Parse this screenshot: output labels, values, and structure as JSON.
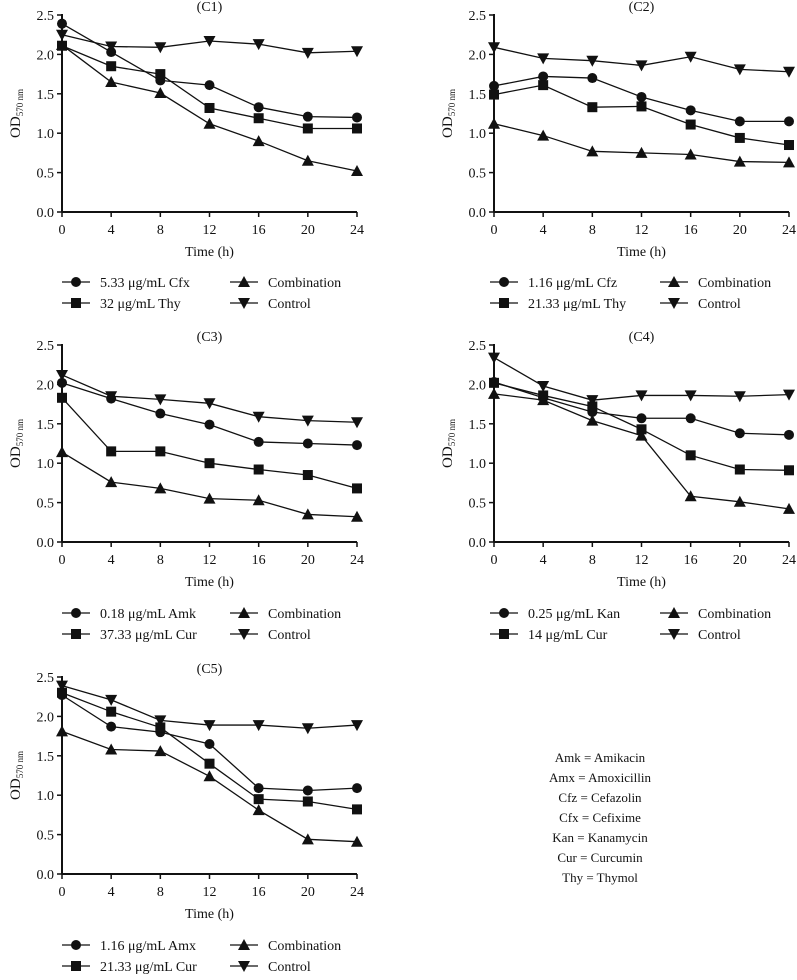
{
  "chart_data": [
    {
      "type": "line",
      "title": "(C1)",
      "xlabel": "Time (h)",
      "ylabel": "OD",
      "ylabel_sub": "570 nm",
      "x": [
        0,
        4,
        8,
        12,
        16,
        20,
        24
      ],
      "xticks": [
        "0",
        "4",
        "8",
        "12",
        "16",
        "20",
        "24"
      ],
      "yticks": [
        "0.0",
        "0.5",
        "1.0",
        "1.5",
        "2.0",
        "2.5"
      ],
      "ylim": [
        0,
        2.5
      ],
      "series": [
        {
          "name": "5.33 μg/mL Cfx",
          "marker": "circle",
          "values": [
            2.39,
            2.03,
            1.67,
            1.61,
            1.33,
            1.21,
            1.2
          ]
        },
        {
          "name": "32 μg/mL Thy",
          "marker": "square",
          "values": [
            2.11,
            1.85,
            1.75,
            1.32,
            1.19,
            1.06,
            1.06
          ]
        },
        {
          "name": "Combination",
          "marker": "triangle-up",
          "values": [
            2.12,
            1.65,
            1.51,
            1.12,
            0.9,
            0.65,
            0.52
          ]
        },
        {
          "name": "Control",
          "marker": "triangle-down",
          "values": [
            2.25,
            2.1,
            2.09,
            2.17,
            2.13,
            2.02,
            2.04
          ]
        }
      ]
    },
    {
      "type": "line",
      "title": "(C2)",
      "xlabel": "Time (h)",
      "ylabel": "OD",
      "ylabel_sub": "570 nm",
      "x": [
        0,
        4,
        8,
        12,
        16,
        20,
        24
      ],
      "xticks": [
        "0",
        "4",
        "8",
        "12",
        "16",
        "20",
        "24"
      ],
      "yticks": [
        "0.0",
        "0.5",
        "1.0",
        "1.5",
        "2.0",
        "2.5"
      ],
      "ylim": [
        0,
        2.5
      ],
      "series": [
        {
          "name": "1.16 μg/mL Cfz",
          "marker": "circle",
          "values": [
            1.6,
            1.72,
            1.7,
            1.46,
            1.29,
            1.15,
            1.15
          ]
        },
        {
          "name": "21.33 μg/mL Thy",
          "marker": "square",
          "values": [
            1.49,
            1.61,
            1.33,
            1.34,
            1.11,
            0.94,
            0.85
          ]
        },
        {
          "name": "Combination",
          "marker": "triangle-up",
          "values": [
            1.12,
            0.97,
            0.77,
            0.75,
            0.73,
            0.64,
            0.63
          ]
        },
        {
          "name": "Control",
          "marker": "triangle-down",
          "values": [
            2.09,
            1.95,
            1.92,
            1.86,
            1.97,
            1.81,
            1.78
          ]
        }
      ]
    },
    {
      "type": "line",
      "title": "(C3)",
      "xlabel": "Time (h)",
      "ylabel": "OD",
      "ylabel_sub": "570 nm",
      "x": [
        0,
        4,
        8,
        12,
        16,
        20,
        24
      ],
      "xticks": [
        "0",
        "4",
        "8",
        "12",
        "16",
        "20",
        "24"
      ],
      "yticks": [
        "0.0",
        "0.5",
        "1.0",
        "1.5",
        "2.0",
        "2.5"
      ],
      "ylim": [
        0,
        2.5
      ],
      "series": [
        {
          "name": "0.18 μg/mL Amk",
          "marker": "circle",
          "values": [
            2.02,
            1.82,
            1.63,
            1.49,
            1.27,
            1.25,
            1.23
          ]
        },
        {
          "name": "37.33 μg/mL Cur",
          "marker": "square",
          "values": [
            1.83,
            1.15,
            1.15,
            1.0,
            0.92,
            0.85,
            0.68
          ]
        },
        {
          "name": "Combination",
          "marker": "triangle-up",
          "values": [
            1.14,
            0.76,
            0.68,
            0.55,
            0.53,
            0.35,
            0.32
          ]
        },
        {
          "name": "Control",
          "marker": "triangle-down",
          "values": [
            2.12,
            1.85,
            1.81,
            1.76,
            1.59,
            1.54,
            1.52
          ]
        }
      ]
    },
    {
      "type": "line",
      "title": "(C4)",
      "xlabel": "Time (h)",
      "ylabel": "OD",
      "ylabel_sub": "570 nm",
      "x": [
        0,
        4,
        8,
        12,
        16,
        20,
        24
      ],
      "xticks": [
        "0",
        "4",
        "8",
        "12",
        "16",
        "20",
        "24"
      ],
      "yticks": [
        "0.0",
        "0.5",
        "1.0",
        "1.5",
        "2.0",
        "2.5"
      ],
      "ylim": [
        0,
        2.5
      ],
      "series": [
        {
          "name": "0.25 μg/mL Kan",
          "marker": "circle",
          "values": [
            2.03,
            1.83,
            1.65,
            1.57,
            1.57,
            1.38,
            1.36
          ]
        },
        {
          "name": "14 μg/mL Cur",
          "marker": "square",
          "values": [
            2.02,
            1.86,
            1.72,
            1.43,
            1.1,
            0.92,
            0.91
          ]
        },
        {
          "name": "Combination",
          "marker": "triangle-up",
          "values": [
            1.88,
            1.8,
            1.54,
            1.35,
            0.58,
            0.51,
            0.42
          ]
        },
        {
          "name": "Control",
          "marker": "triangle-down",
          "values": [
            2.34,
            1.98,
            1.8,
            1.86,
            1.86,
            1.85,
            1.87
          ]
        }
      ]
    },
    {
      "type": "line",
      "title": "(C5)",
      "xlabel": "Time (h)",
      "ylabel": "OD",
      "ylabel_sub": "570 nm",
      "x": [
        0,
        4,
        8,
        12,
        16,
        20,
        24
      ],
      "xticks": [
        "0",
        "4",
        "8",
        "12",
        "16",
        "20",
        "24"
      ],
      "yticks": [
        "0.0",
        "0.5",
        "1.0",
        "1.5",
        "2.0",
        "2.5"
      ],
      "ylim": [
        0,
        2.5
      ],
      "series": [
        {
          "name": "1.16 μg/mL Amx",
          "marker": "circle",
          "values": [
            2.27,
            1.87,
            1.8,
            1.65,
            1.09,
            1.06,
            1.09
          ]
        },
        {
          "name": "21.33 μg/mL Cur",
          "marker": "square",
          "values": [
            2.3,
            2.06,
            1.86,
            1.4,
            0.95,
            0.92,
            0.82
          ]
        },
        {
          "name": "Combination",
          "marker": "triangle-up",
          "values": [
            1.81,
            1.58,
            1.56,
            1.24,
            0.81,
            0.44,
            0.41
          ]
        },
        {
          "name": "Control",
          "marker": "triangle-down",
          "values": [
            2.39,
            2.21,
            1.95,
            1.89,
            1.89,
            1.85,
            1.89
          ]
        }
      ]
    }
  ],
  "abbreviations": [
    "Amk = Amikacin",
    "Amx = Amoxicillin",
    "Cfz = Cefazolin",
    "Cfx = Cefixime",
    "Kan = Kanamycin",
    "Cur = Curcumin",
    "Thy = Thymol"
  ],
  "colors": {
    "ink": "#111111"
  }
}
